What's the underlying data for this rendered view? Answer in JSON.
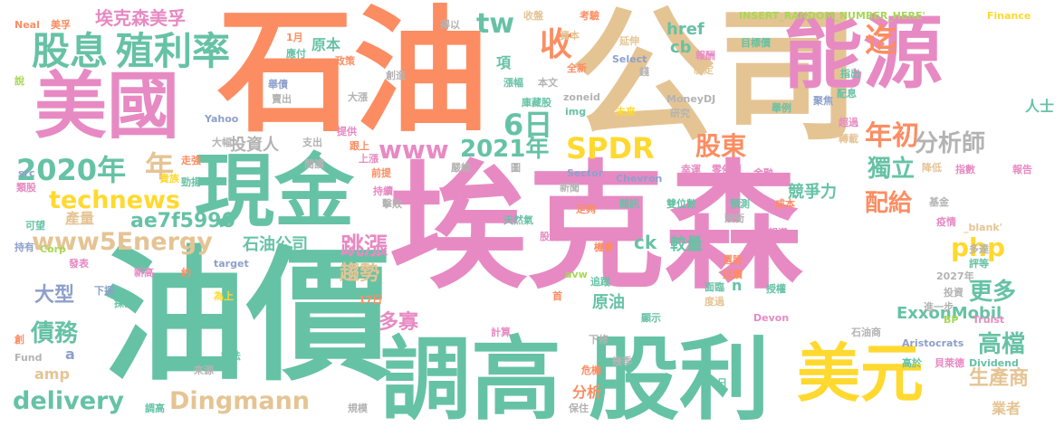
{
  "palette": {
    "green": "#66c2a5",
    "orange": "#fc8d62",
    "blue": "#8da0cb",
    "pink": "#e78ac3",
    "lime": "#a6d854",
    "yellow": "#ffd92f",
    "tan": "#e5c494",
    "gray": "#b3b3b3"
  },
  "words": [
    {
      "text": "埃克森",
      "color": "pink"
    },
    {
      "text": "油價",
      "color": "green"
    },
    {
      "text": "石油",
      "color": "orange"
    },
    {
      "text": "公司",
      "color": "tan"
    },
    {
      "text": "調高",
      "color": "green"
    },
    {
      "text": "股利",
      "color": "green"
    },
    {
      "text": "美國",
      "color": "pink"
    },
    {
      "text": "能源",
      "color": "pink"
    },
    {
      "text": "現金",
      "color": "green"
    },
    {
      "text": "美元",
      "color": "yellow"
    },
    {
      "text": "股息",
      "color": "green"
    },
    {
      "text": "殖利率",
      "color": "green"
    },
    {
      "text": "埃克森美孚",
      "color": "pink"
    },
    {
      "text": "2020年",
      "color": "green"
    },
    {
      "text": "technews",
      "color": "yellow"
    },
    {
      "text": "www5Energy",
      "color": "tan"
    },
    {
      "text": "delivery",
      "color": "green"
    },
    {
      "text": "Dingmann",
      "color": "tan"
    },
    {
      "text": "SPDR",
      "color": "yellow"
    },
    {
      "text": "www",
      "color": "pink"
    },
    {
      "text": "2021年",
      "color": "green"
    },
    {
      "text": "6日",
      "color": "green"
    },
    {
      "text": "tw",
      "color": "green"
    },
    {
      "text": "收",
      "color": "orange"
    },
    {
      "text": "迄",
      "color": "orange"
    },
    {
      "text": "年初",
      "color": "orange"
    },
    {
      "text": "分析師",
      "color": "gray"
    },
    {
      "text": "股東",
      "color": "orange"
    },
    {
      "text": "獨立",
      "color": "green"
    },
    {
      "text": "配給",
      "color": "orange"
    },
    {
      "text": "跳漲",
      "color": "pink"
    },
    {
      "text": "php",
      "color": "yellow"
    },
    {
      "text": "更多",
      "color": "green"
    },
    {
      "text": "高檔",
      "color": "green"
    },
    {
      "text": "生產商",
      "color": "tan"
    },
    {
      "text": "債務",
      "color": "green"
    },
    {
      "text": "大型",
      "color": "blue"
    },
    {
      "text": "amp",
      "color": "tan"
    },
    {
      "text": "ExxonMobil",
      "color": "green"
    },
    {
      "text": "人士",
      "color": "green"
    },
    {
      "text": "年",
      "color": "tan"
    },
    {
      "text": "ae7f5990",
      "color": "green"
    },
    {
      "text": "石油公司",
      "color": "green"
    },
    {
      "text": "趨勢",
      "color": "tan"
    },
    {
      "text": "多寡",
      "color": "pink"
    },
    {
      "text": "原油",
      "color": "green"
    },
    {
      "text": "分析",
      "color": "orange"
    },
    {
      "text": "ck",
      "color": "green"
    },
    {
      "text": "較量",
      "color": "green"
    },
    {
      "text": "競爭力",
      "color": "green"
    },
    {
      "text": "href",
      "color": "green"
    },
    {
      "text": "cb",
      "color": "green"
    },
    {
      "text": "投資人",
      "color": "gray"
    },
    {
      "text": "產量",
      "color": "tan"
    },
    {
      "text": "原本",
      "color": "green"
    },
    {
      "text": "項",
      "color": "green"
    },
    {
      "text": "業者",
      "color": "tan"
    },
    {
      "text": "a",
      "color": "blue"
    },
    {
      "text": "n",
      "color": "green"
    },
    {
      "text": "INSERT_RANDOM_NUMBER_HERE'",
      "color": "lime"
    },
    {
      "text": "Finance",
      "color": "yellow"
    },
    {
      "text": "Neal",
      "color": "orange"
    },
    {
      "text": "美孚",
      "color": "orange"
    },
    {
      "text": "得以",
      "color": "gray"
    },
    {
      "text": "收盤",
      "color": "tan"
    },
    {
      "text": "考驗",
      "color": "orange"
    },
    {
      "text": "報酬",
      "color": "pink"
    },
    {
      "text": "目標價",
      "color": "green"
    },
    {
      "text": "資本",
      "color": "tan"
    },
    {
      "text": "延伸",
      "color": "tan"
    },
    {
      "text": "Select",
      "color": "blue"
    },
    {
      "text": "全新",
      "color": "orange"
    },
    {
      "text": "錢",
      "color": "gray"
    },
    {
      "text": "制定",
      "color": "tan"
    },
    {
      "text": "指出",
      "color": "green"
    },
    {
      "text": "配息",
      "color": "green"
    },
    {
      "text": "舉例",
      "color": "green"
    },
    {
      "text": "聚焦",
      "color": "blue"
    },
    {
      "text": "超過",
      "color": "pink"
    },
    {
      "text": "轉載",
      "color": "tan"
    },
    {
      "text": "指數",
      "color": "pink"
    },
    {
      "text": "報告",
      "color": "pink"
    },
    {
      "text": "降低",
      "color": "tan"
    },
    {
      "text": "1月",
      "color": "orange"
    },
    {
      "text": "應付",
      "color": "green"
    },
    {
      "text": "政策",
      "color": "orange"
    },
    {
      "text": "創造",
      "color": "gray"
    },
    {
      "text": "舉債",
      "color": "blue"
    },
    {
      "text": "大漲",
      "color": "gray"
    },
    {
      "text": "賣出",
      "color": "gray"
    },
    {
      "text": "漲幅",
      "color": "green"
    },
    {
      "text": "本文",
      "color": "gray"
    },
    {
      "text": "zoneid",
      "color": "gray"
    },
    {
      "text": "img",
      "color": "green"
    },
    {
      "text": "MoneyDJ",
      "color": "gray"
    },
    {
      "text": "研究",
      "color": "gray"
    },
    {
      "text": "未來",
      "color": "yellow"
    },
    {
      "text": "庫藏股",
      "color": "green"
    },
    {
      "text": "提供",
      "color": "pink"
    },
    {
      "text": "支出",
      "color": "gray"
    },
    {
      "text": "閱讀",
      "color": "gray"
    },
    {
      "text": "跟上",
      "color": "orange"
    },
    {
      "text": "上漲",
      "color": "pink"
    },
    {
      "text": "Yahoo",
      "color": "blue"
    },
    {
      "text": "大幅",
      "color": "gray"
    },
    {
      "text": "走強",
      "color": "orange"
    },
    {
      "text": "貴族",
      "color": "yellow"
    },
    {
      "text": "勁揚",
      "color": "green"
    },
    {
      "text": "前提",
      "color": "orange"
    },
    {
      "text": "持續",
      "color": "pink"
    },
    {
      "text": "嚴峻",
      "color": "gray"
    },
    {
      "text": "圖",
      "color": "gray"
    },
    {
      "text": "幸運",
      "color": "pink"
    },
    {
      "text": "零佛龍",
      "color": "pink"
    },
    {
      "text": "金融",
      "color": "pink"
    },
    {
      "text": "Chevron",
      "color": "blue"
    },
    {
      "text": "Sector",
      "color": "blue"
    },
    {
      "text": "擊敗",
      "color": "gray"
    },
    {
      "text": "預估",
      "color": "pink"
    },
    {
      "text": "新聞",
      "color": "gray"
    },
    {
      "text": "閱訊",
      "color": "green"
    },
    {
      "text": "雙位數",
      "color": "green"
    },
    {
      "text": "預測",
      "color": "green"
    },
    {
      "text": "成本",
      "color": "orange"
    },
    {
      "text": "基金",
      "color": "gray"
    },
    {
      "text": "src",
      "color": "blue"
    },
    {
      "text": "類股",
      "color": "pink"
    },
    {
      "text": "可望",
      "color": "green"
    },
    {
      "text": "天然氣",
      "color": "green"
    },
    {
      "text": "足夠",
      "color": "orange"
    },
    {
      "text": "股利",
      "color": "pink"
    },
    {
      "text": "機會",
      "color": "orange"
    },
    {
      "text": "疫情",
      "color": "pink"
    },
    {
      "text": "_blank'",
      "color": "tan"
    },
    {
      "text": "頭銜",
      "color": "gray"
    },
    {
      "text": "報導",
      "color": "pink"
    },
    {
      "text": "選股",
      "color": "orange"
    },
    {
      "text": "延續",
      "color": "orange"
    },
    {
      "text": "多達",
      "color": "gray"
    },
    {
      "text": "評等",
      "color": "green"
    },
    {
      "text": "持有",
      "color": "blue"
    },
    {
      "text": "Corp",
      "color": "lime"
    },
    {
      "text": "發表",
      "color": "pink"
    },
    {
      "text": "新高",
      "color": "pink"
    },
    {
      "text": "約",
      "color": "orange"
    },
    {
      "text": "target",
      "color": "blue"
    },
    {
      "text": "avw",
      "color": "lime"
    },
    {
      "text": "追蹤",
      "color": "green"
    },
    {
      "text": "2027年",
      "color": "gray"
    },
    {
      "text": "價還",
      "color": "green"
    },
    {
      "text": "下探",
      "color": "blue"
    },
    {
      "text": "探勘",
      "color": "green"
    },
    {
      "text": "為上",
      "color": "yellow"
    },
    {
      "text": "17日",
      "color": "orange"
    },
    {
      "text": "首",
      "color": "orange"
    },
    {
      "text": "面臨",
      "color": "green"
    },
    {
      "text": "度過",
      "color": "tan"
    },
    {
      "text": "授權",
      "color": "green"
    },
    {
      "text": "投資",
      "color": "gray"
    },
    {
      "text": "進一步",
      "color": "gray"
    },
    {
      "text": "BP",
      "color": "lime"
    },
    {
      "text": "Truist",
      "color": "pink"
    },
    {
      "text": "Devon",
      "color": "pink"
    },
    {
      "text": "顯示",
      "color": "green"
    },
    {
      "text": "石油商",
      "color": "gray"
    },
    {
      "text": "Aristocrats",
      "color": "blue"
    },
    {
      "text": "高於",
      "color": "green"
    },
    {
      "text": "貝萊德",
      "color": "pink"
    },
    {
      "text": "Dividend",
      "color": "green"
    },
    {
      "text": "計算",
      "color": "pink"
    },
    {
      "text": "下修",
      "color": "gray"
    },
    {
      "text": "幾季",
      "color": "gray"
    },
    {
      "text": "危機",
      "color": "orange"
    },
    {
      "text": "創",
      "color": "orange"
    },
    {
      "text": "Fund",
      "color": "gray"
    },
    {
      "text": "設法",
      "color": "green"
    },
    {
      "text": "來源",
      "color": "gray"
    },
    {
      "text": "保住",
      "color": "gray"
    },
    {
      "text": "規模",
      "color": "gray"
    },
    {
      "text": "調高",
      "color": "green"
    },
    {
      "text": "日",
      "color": "green"
    },
    {
      "text": "說",
      "color": "lime"
    }
  ]
}
